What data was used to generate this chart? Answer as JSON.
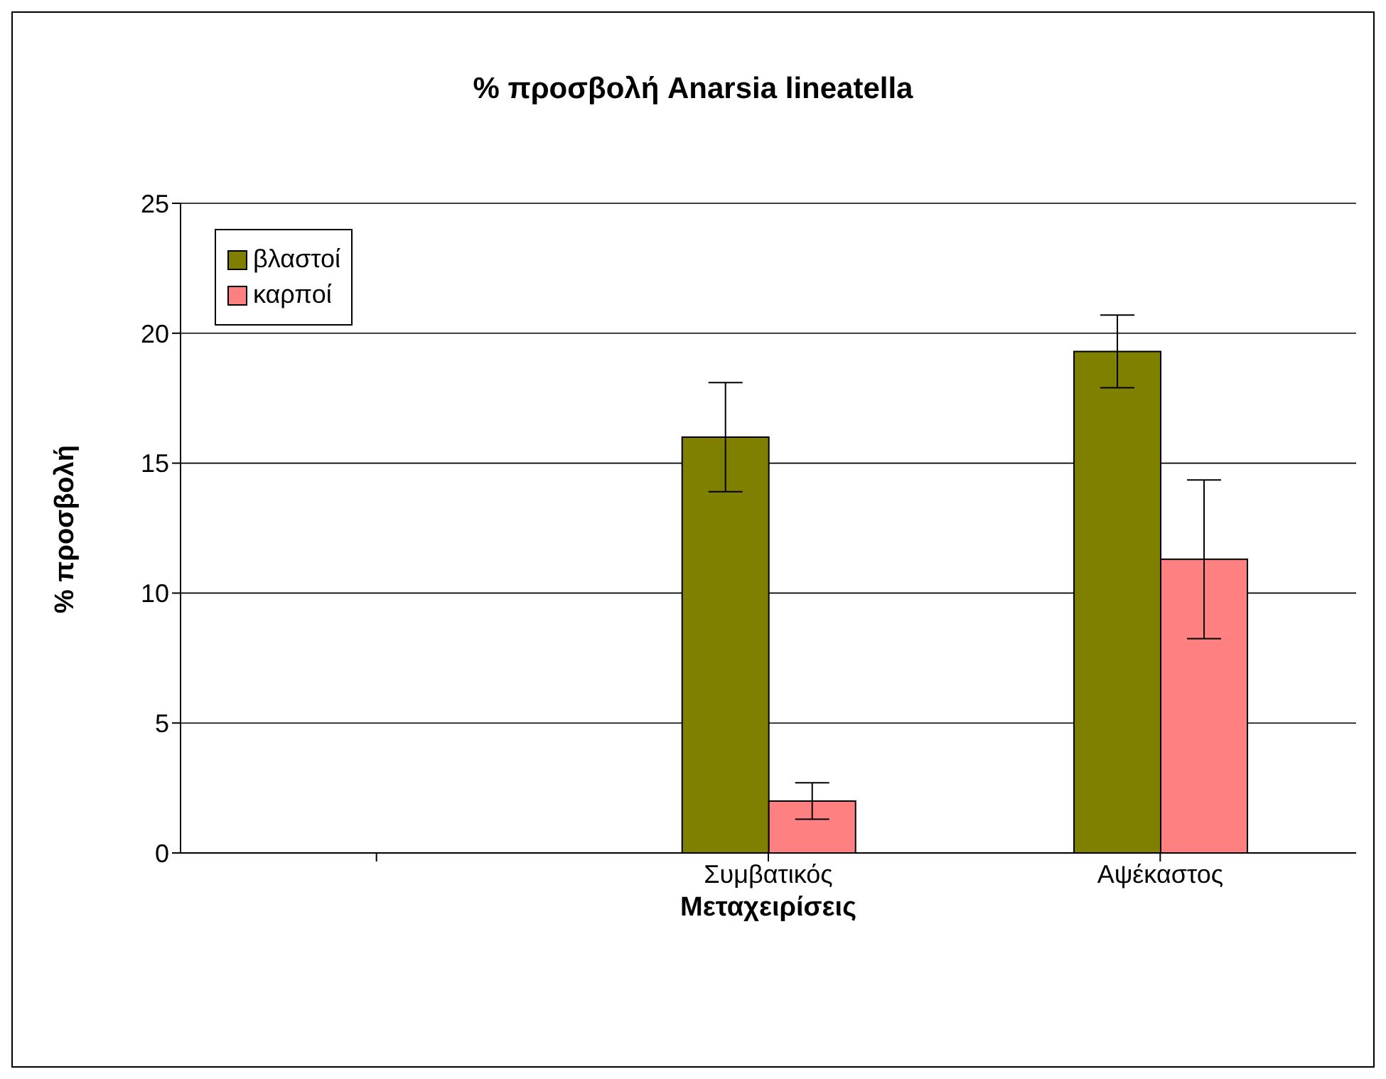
{
  "chart_data": {
    "type": "bar",
    "title": "% προσβολή Anarsia lineatella",
    "xlabel": "Μεταχειρίσεις",
    "ylabel": "% προσβολή",
    "categories": [
      null,
      "Συμβατικός",
      "Αψέκαστος"
    ],
    "series": [
      {
        "name": "βλαστοί",
        "color": "#808000",
        "values": [
          0,
          16,
          19.3
        ],
        "errors": [
          null,
          2.1,
          1.4
        ]
      },
      {
        "name": "καρποί",
        "color": "#ff8080",
        "values": [
          0,
          2,
          11.3
        ],
        "errors": [
          null,
          0.7,
          3.05
        ]
      }
    ],
    "ylim": [
      0,
      25
    ],
    "yticks": [
      0,
      5,
      10,
      15,
      20,
      25
    ],
    "grid": "y",
    "legend": "top left"
  }
}
